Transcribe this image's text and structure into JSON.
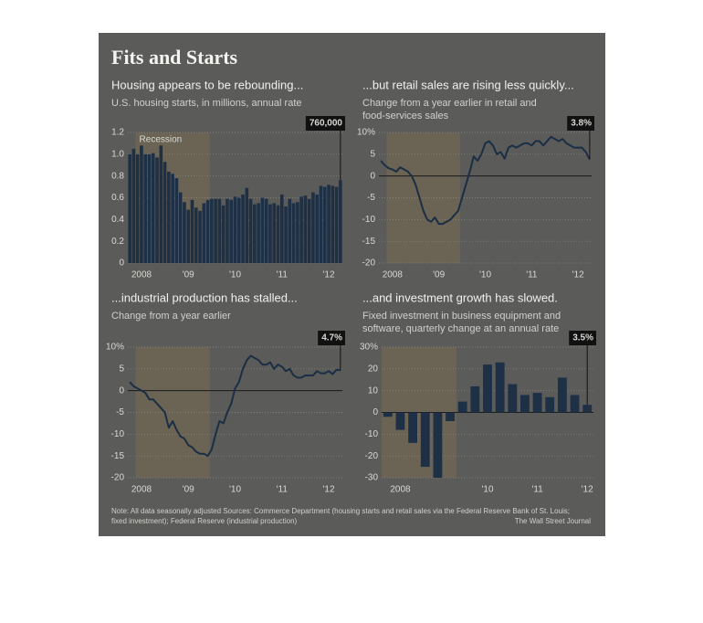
{
  "title": "Fits and Starts",
  "note": [
    "Note: All data seasonally adjusted    Sources: Commerce Department (housing starts and retail sales via the Federal Reserve Bank of St. Louis;",
    "fixed investment); Federal Reserve (industrial production)"
  ],
  "credit": "The Wall Street Journal",
  "chart_data": [
    {
      "type": "bar",
      "title": "Housing appears to be rebounding...",
      "subtitle": [
        "U.S. housing starts, in millions, annual rate"
      ],
      "color": "#1e3046",
      "shade": [
        2,
        20
      ],
      "shade_label": "Recession",
      "callout": "760,000",
      "categories": [
        null,
        null,
        null,
        "2008",
        null,
        null,
        null,
        null,
        null,
        null,
        null,
        null,
        null,
        null,
        null,
        "'09",
        null,
        null,
        null,
        null,
        null,
        null,
        null,
        null,
        null,
        null,
        null,
        "'10",
        null,
        null,
        null,
        null,
        null,
        null,
        null,
        null,
        null,
        null,
        null,
        "'11",
        null,
        null,
        null,
        null,
        null,
        null,
        null,
        null,
        null,
        null,
        null,
        "'12",
        null,
        null,
        null
      ],
      "values": [
        1.0,
        1.05,
        1.0,
        1.08,
        1.0,
        1.0,
        1.01,
        0.97,
        1.08,
        0.93,
        0.84,
        0.82,
        0.78,
        0.65,
        0.56,
        0.49,
        0.58,
        0.51,
        0.48,
        0.55,
        0.58,
        0.59,
        0.59,
        0.59,
        0.53,
        0.59,
        0.58,
        0.61,
        0.6,
        0.63,
        0.69,
        0.59,
        0.54,
        0.55,
        0.6,
        0.59,
        0.54,
        0.55,
        0.53,
        0.63,
        0.52,
        0.59,
        0.55,
        0.56,
        0.61,
        0.62,
        0.59,
        0.65,
        0.63,
        0.71,
        0.7,
        0.72,
        0.71,
        0.7,
        0.76
      ],
      "ylim": [
        0,
        1.2
      ],
      "yticks": [
        0,
        0.2,
        0.4,
        0.6,
        0.8,
        {
          "value": 1,
          "label": "1.0"
        },
        1.2
      ],
      "grid": true
    },
    {
      "type": "line",
      "title": "...but retail sales are rising less quickly...",
      "subtitle": [
        "Change from a year earlier in retail and",
        "food-services sales"
      ],
      "color": "#1b2e44",
      "shade": [
        2,
        20
      ],
      "callout": "3.8%",
      "categories": [
        null,
        null,
        null,
        "2008",
        null,
        null,
        null,
        null,
        null,
        null,
        null,
        null,
        null,
        null,
        null,
        "'09",
        null,
        null,
        null,
        null,
        null,
        null,
        null,
        null,
        null,
        null,
        null,
        "'10",
        null,
        null,
        null,
        null,
        null,
        null,
        null,
        null,
        null,
        null,
        null,
        "'11",
        null,
        null,
        null,
        null,
        null,
        null,
        null,
        null,
        null,
        null,
        null,
        "'12",
        null,
        null,
        null
      ],
      "values": [
        3.5,
        2.5,
        1.8,
        1.5,
        1.0,
        2.0,
        1.5,
        1.0,
        0.0,
        -2.0,
        -5.0,
        -8.0,
        -10.0,
        -10.5,
        -9.5,
        -11.0,
        -11.0,
        -10.5,
        -10.0,
        -9.0,
        -8.0,
        -5.0,
        -2.0,
        1.0,
        4.5,
        3.5,
        5.0,
        7.5,
        8.0,
        7.0,
        5.0,
        5.5,
        4.0,
        6.5,
        7.0,
        6.5,
        7.0,
        7.5,
        7.5,
        7.0,
        8.0,
        8.0,
        7.0,
        8.0,
        9.0,
        8.5,
        8.0,
        8.5,
        7.5,
        7.0,
        6.5,
        6.5,
        6.5,
        5.5,
        3.8
      ],
      "ylim": [
        -20,
        10
      ],
      "yticks": [
        -20,
        -15,
        -10,
        -5,
        0,
        5,
        {
          "value": 10,
          "label": "10%"
        }
      ],
      "grid": true
    },
    {
      "type": "line",
      "title": "...industrial production has stalled...",
      "subtitle": [
        "Change from a year earlier"
      ],
      "color": "#1b2e44",
      "shade": [
        2,
        20
      ],
      "callout": "4.7%",
      "categories": [
        null,
        null,
        null,
        "2008",
        null,
        null,
        null,
        null,
        null,
        null,
        null,
        null,
        null,
        null,
        null,
        "'09",
        null,
        null,
        null,
        null,
        null,
        null,
        null,
        null,
        null,
        null,
        null,
        "'10",
        null,
        null,
        null,
        null,
        null,
        null,
        null,
        null,
        null,
        null,
        null,
        "'11",
        null,
        null,
        null,
        null,
        null,
        null,
        null,
        null,
        null,
        null,
        null,
        "'12",
        null,
        null,
        null
      ],
      "values": [
        2.0,
        1.0,
        0.5,
        0.0,
        -0.5,
        -2.0,
        -2.0,
        -3.0,
        -4.0,
        -5.0,
        -8.5,
        -7.0,
        -9.0,
        -10.5,
        -11.0,
        -12.5,
        -13.0,
        -14.0,
        -14.5,
        -14.5,
        -15.0,
        -13.5,
        -10.0,
        -7.0,
        -7.5,
        -5.0,
        -3.0,
        0.5,
        2.0,
        5.0,
        7.0,
        8.0,
        7.5,
        7.0,
        6.0,
        6.0,
        6.5,
        5.0,
        6.0,
        5.5,
        4.5,
        5.0,
        3.5,
        3.0,
        3.0,
        3.5,
        3.5,
        3.5,
        4.5,
        4.0,
        4.0,
        4.5,
        3.8,
        4.8,
        4.7
      ],
      "ylim": [
        -20,
        10
      ],
      "yticks": [
        -20,
        -15,
        -10,
        -5,
        0,
        5,
        {
          "value": 10,
          "label": "10%"
        }
      ],
      "grid": true
    },
    {
      "type": "bar",
      "title": "...and investment growth has slowed.",
      "subtitle": [
        "Fixed investment in business equipment and",
        "software, quarterly change at an annual rate"
      ],
      "color": "#1e3046",
      "shade": [
        0,
        5
      ],
      "callout": "3.5%",
      "categories": [
        null,
        "2008",
        null,
        null,
        null,
        null,
        null,
        null,
        "'10",
        null,
        null,
        null,
        "'11",
        null,
        null,
        null,
        "'12"
      ],
      "values": [
        -2,
        -8,
        -14,
        -25,
        -30,
        -4,
        5,
        12,
        22,
        23,
        13,
        8,
        9,
        7,
        16,
        8,
        3.5
      ],
      "ylim": [
        -30,
        30
      ],
      "yticks": [
        -30,
        -20,
        -10,
        0,
        10,
        20,
        {
          "value": 30,
          "label": "30%"
        }
      ],
      "grid": true
    }
  ]
}
